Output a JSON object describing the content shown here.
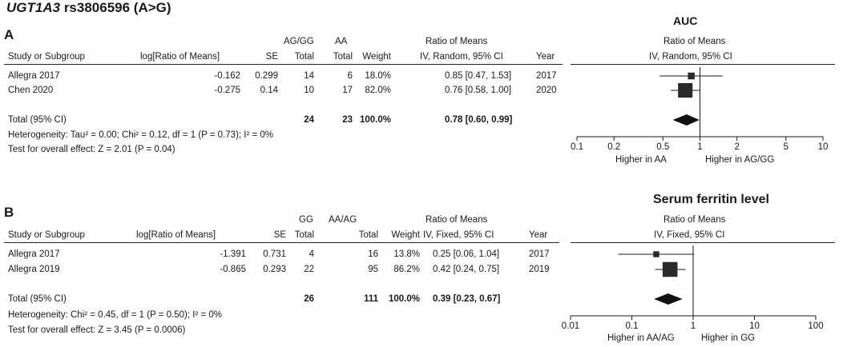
{
  "title": {
    "gene": "UGT1A3",
    "variant": "rs3806596 (A>G)"
  },
  "chart_data": [
    {
      "type": "forest",
      "panel": "A",
      "plot_title": "AUC",
      "headers": {
        "study": "Study or Subgroup",
        "est": "log[Ratio of Means]",
        "se": "SE",
        "g1_name": "AG/GG",
        "g1_total": "Total",
        "g2_name": "AA",
        "g2_total": "Total",
        "weight": "Weight",
        "ci1": "Ratio of Means",
        "ci2": "IV, Random, 95% CI",
        "year": "Year",
        "plot1": "Ratio of Means",
        "plot2": "IV, Random, 95% CI"
      },
      "studies": [
        {
          "name": "Allegra 2017",
          "est": "-0.162",
          "se": "0.299",
          "n1": "14",
          "n2": "6",
          "weight": "18.0%",
          "ci": "0.85 [0.47, 1.53]",
          "year": "2017",
          "point": 0.85,
          "lo": 0.47,
          "hi": 1.53,
          "w": 18.0
        },
        {
          "name": "Chen 2020",
          "est": "-0.275",
          "se": "0.14",
          "n1": "10",
          "n2": "17",
          "weight": "82.0%",
          "ci": "0.76 [0.58, 1.00]",
          "year": "2020",
          "point": 0.76,
          "lo": 0.58,
          "hi": 1.0,
          "w": 82.0
        }
      ],
      "total": {
        "label": "Total (95% CI)",
        "n1": "24",
        "n2": "23",
        "weight": "100.0%",
        "ci": "0.78 [0.60, 0.99]",
        "point": 0.78,
        "lo": 0.6,
        "hi": 0.99
      },
      "heterogeneity": "Heterogeneity: Tau² = 0.00; Chi² = 0.12, df = 1 (P = 0.73); I² = 0%",
      "overall": "Test for overall effect: Z = 2.01 (P = 0.04)",
      "axis": {
        "scale": "log",
        "min": 0.1,
        "max": 10,
        "ticks": [
          0.1,
          0.2,
          0.5,
          1,
          2,
          5,
          10
        ],
        "tick_labels": [
          "0.1",
          "0.2",
          "0.5",
          "1",
          "2",
          "5",
          "10"
        ]
      },
      "favours_left": "Higher in AA",
      "favours_right": "Higher in AG/GG"
    },
    {
      "type": "forest",
      "panel": "B",
      "plot_title": "Serum ferritin level",
      "headers": {
        "study": "Study or Subgroup",
        "est": "log[Ratio of Means]",
        "se": "SE",
        "g1_name": "GG",
        "g1_total": "Total",
        "g2_name": "AA/AG",
        "g2_total": "Total",
        "weight": "Weight",
        "ci1": "Ratio of Means",
        "ci2": "IV, Fixed, 95% CI",
        "year": "Year",
        "plot1": "Ratio of Means",
        "plot2": "IV, Fixed, 95% CI"
      },
      "studies": [
        {
          "name": "Allegra 2017",
          "est": "-1.391",
          "se": "0.731",
          "n1": "4",
          "n2": "16",
          "weight": "13.8%",
          "ci": "0.25 [0.06, 1.04]",
          "year": "2017",
          "point": 0.25,
          "lo": 0.06,
          "hi": 1.04,
          "w": 13.8
        },
        {
          "name": "Allegra 2019",
          "est": "-0.865",
          "se": "0.293",
          "n1": "22",
          "n2": "95",
          "weight": "86.2%",
          "ci": "0.42 [0.24, 0.75]",
          "year": "2019",
          "point": 0.42,
          "lo": 0.24,
          "hi": 0.75,
          "w": 86.2
        }
      ],
      "total": {
        "label": "Total (95% CI)",
        "n1": "26",
        "n2": "111",
        "weight": "100.0%",
        "ci": "0.39 [0.23, 0.67]",
        "point": 0.39,
        "lo": 0.23,
        "hi": 0.67
      },
      "heterogeneity": "Heterogeneity: Chi² = 0.45, df = 1 (P = 0.50); I² = 0%",
      "overall": "Test for overall effect: Z = 3.45 (P = 0.0006)",
      "axis": {
        "scale": "log",
        "min": 0.01,
        "max": 100,
        "ticks": [
          0.01,
          0.1,
          1,
          10,
          100
        ],
        "tick_labels": [
          "0.01",
          "0.1",
          "1",
          "10",
          "100"
        ]
      },
      "favours_left": "Higher in AA/AG",
      "favours_right": "Higher in GG"
    }
  ]
}
